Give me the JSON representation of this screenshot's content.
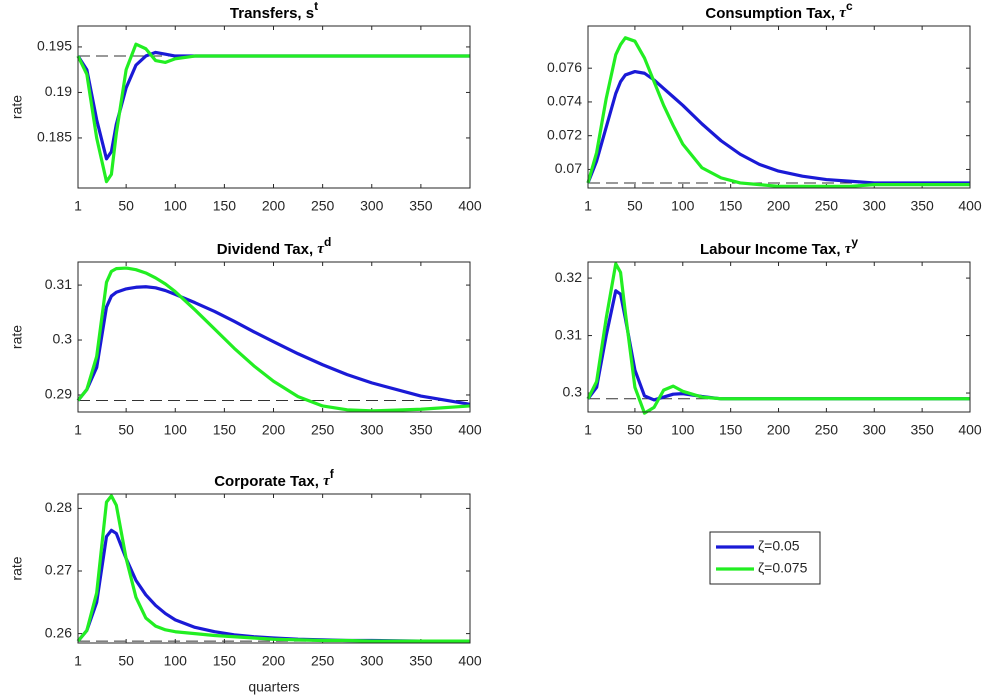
{
  "chart_data": [
    {
      "type": "line",
      "title": "Transfers, s",
      "title_sup": "t",
      "ylabel": "rate",
      "x": [
        1,
        10,
        20,
        30,
        35,
        40,
        50,
        60,
        70,
        80,
        90,
        100,
        120,
        140,
        160,
        180,
        200,
        225,
        250,
        275,
        300,
        350,
        400
      ],
      "xlim": [
        1,
        400
      ],
      "xticks": [
        1,
        50,
        100,
        150,
        200,
        250,
        300,
        350,
        400
      ],
      "ylim": [
        0.1795,
        0.1973
      ],
      "yticks": [
        0.185,
        0.19,
        0.195
      ],
      "steady_state": 0.194,
      "series": [
        {
          "name": "ζ=0.05",
          "color": "#1a1ad6",
          "values": [
            0.194,
            0.1925,
            0.187,
            0.1827,
            0.1835,
            0.1865,
            0.1905,
            0.193,
            0.194,
            0.1944,
            0.1942,
            0.194,
            0.194,
            0.194,
            0.194,
            0.194,
            0.194,
            0.194,
            0.194,
            0.194,
            0.194,
            0.194,
            0.194
          ]
        },
        {
          "name": "ζ=0.075",
          "color": "#22ee22",
          "values": [
            0.194,
            0.192,
            0.185,
            0.1802,
            0.181,
            0.1855,
            0.1925,
            0.1953,
            0.1948,
            0.1935,
            0.1933,
            0.1937,
            0.194,
            0.194,
            0.194,
            0.194,
            0.194,
            0.194,
            0.194,
            0.194,
            0.194,
            0.194,
            0.194
          ]
        }
      ]
    },
    {
      "type": "line",
      "title": "Consumption Tax, τ",
      "title_sup": "c",
      "x": [
        1,
        10,
        20,
        30,
        35,
        40,
        50,
        60,
        70,
        80,
        90,
        100,
        120,
        140,
        160,
        180,
        200,
        225,
        250,
        275,
        300,
        350,
        400
      ],
      "xlim": [
        1,
        400
      ],
      "xticks": [
        1,
        50,
        100,
        150,
        200,
        250,
        300,
        350,
        400
      ],
      "ylim": [
        0.0689,
        0.0785
      ],
      "yticks": [
        0.07,
        0.072,
        0.074,
        0.076
      ],
      "steady_state": 0.0692,
      "series": [
        {
          "name": "ζ=0.05",
          "color": "#1a1ad6",
          "values": [
            0.0692,
            0.0705,
            0.0725,
            0.0745,
            0.0752,
            0.0756,
            0.0758,
            0.0757,
            0.0753,
            0.0748,
            0.0743,
            0.0738,
            0.0727,
            0.0717,
            0.0709,
            0.0703,
            0.0699,
            0.0696,
            0.0694,
            0.0693,
            0.0692,
            0.0692,
            0.0692
          ]
        },
        {
          "name": "ζ=0.075",
          "color": "#22ee22",
          "values": [
            0.0692,
            0.071,
            0.0742,
            0.0768,
            0.0774,
            0.0778,
            0.0776,
            0.0766,
            0.0752,
            0.0738,
            0.0726,
            0.0715,
            0.0701,
            0.0695,
            0.0692,
            0.0691,
            0.069,
            0.069,
            0.069,
            0.069,
            0.0691,
            0.0691,
            0.0691
          ]
        }
      ]
    },
    {
      "type": "line",
      "title": "Dividend Tax, τ",
      "title_sup": "d",
      "ylabel": "rate",
      "x": [
        1,
        10,
        20,
        30,
        35,
        40,
        50,
        60,
        70,
        80,
        90,
        100,
        120,
        140,
        160,
        180,
        200,
        225,
        250,
        275,
        300,
        350,
        400
      ],
      "xlim": [
        1,
        400
      ],
      "xticks": [
        1,
        50,
        100,
        150,
        200,
        250,
        300,
        350,
        400
      ],
      "ylim": [
        0.2869,
        0.3142
      ],
      "yticks": [
        0.29,
        0.3,
        0.31
      ],
      "steady_state": 0.289,
      "series": [
        {
          "name": "ζ=0.05",
          "color": "#1a1ad6",
          "values": [
            0.289,
            0.291,
            0.295,
            0.306,
            0.308,
            0.3087,
            0.3093,
            0.3096,
            0.3097,
            0.3095,
            0.309,
            0.3083,
            0.3068,
            0.3052,
            0.3034,
            0.3015,
            0.2997,
            0.2975,
            0.2955,
            0.2937,
            0.2922,
            0.2898,
            0.2883
          ]
        },
        {
          "name": "ζ=0.075",
          "color": "#22ee22",
          "values": [
            0.289,
            0.291,
            0.297,
            0.3105,
            0.3125,
            0.313,
            0.3131,
            0.3128,
            0.3122,
            0.3113,
            0.3102,
            0.3088,
            0.3055,
            0.302,
            0.2985,
            0.2953,
            0.2925,
            0.2897,
            0.288,
            0.2873,
            0.2871,
            0.2874,
            0.288
          ]
        }
      ]
    },
    {
      "type": "line",
      "title": "Labour Income Tax, τ",
      "title_sup": "y",
      "x": [
        1,
        10,
        20,
        30,
        35,
        40,
        50,
        60,
        70,
        80,
        90,
        100,
        120,
        140,
        160,
        180,
        200,
        225,
        250,
        275,
        300,
        350,
        400
      ],
      "xlim": [
        1,
        400
      ],
      "xticks": [
        1,
        50,
        100,
        150,
        200,
        250,
        300,
        350,
        400
      ],
      "ylim": [
        0.2967,
        0.3228
      ],
      "yticks": [
        0.3,
        0.31,
        0.32
      ],
      "steady_state": 0.299,
      "series": [
        {
          "name": "ζ=0.05",
          "color": "#1a1ad6",
          "values": [
            0.299,
            0.301,
            0.31,
            0.3178,
            0.3172,
            0.313,
            0.304,
            0.2995,
            0.2988,
            0.2993,
            0.2998,
            0.2999,
            0.2994,
            0.299,
            0.299,
            0.299,
            0.299,
            0.299,
            0.299,
            0.299,
            0.299,
            0.299,
            0.299
          ]
        },
        {
          "name": "ζ=0.075",
          "color": "#22ee22",
          "values": [
            0.299,
            0.302,
            0.313,
            0.3225,
            0.321,
            0.314,
            0.301,
            0.2965,
            0.2975,
            0.3005,
            0.3012,
            0.3003,
            0.2993,
            0.299,
            0.299,
            0.299,
            0.299,
            0.299,
            0.299,
            0.299,
            0.299,
            0.299,
            0.299
          ]
        }
      ]
    },
    {
      "type": "line",
      "title": "Corporate Tax, τ",
      "title_sup": "f",
      "ylabel": "rate",
      "xlabel": "quarters",
      "x": [
        1,
        10,
        20,
        30,
        35,
        40,
        50,
        60,
        70,
        80,
        90,
        100,
        120,
        140,
        160,
        180,
        200,
        225,
        250,
        275,
        300,
        350,
        400
      ],
      "xlim": [
        1,
        400
      ],
      "xticks": [
        1,
        50,
        100,
        150,
        200,
        250,
        300,
        350,
        400
      ],
      "ylim": [
        0.2585,
        0.2823
      ],
      "yticks": [
        0.26,
        0.27,
        0.28
      ],
      "steady_state": 0.2588,
      "series": [
        {
          "name": "ζ=0.05",
          "color": "#1a1ad6",
          "values": [
            0.2588,
            0.2605,
            0.265,
            0.2755,
            0.2765,
            0.276,
            0.272,
            0.2685,
            0.2662,
            0.2645,
            0.2632,
            0.2622,
            0.261,
            0.2603,
            0.2598,
            0.2595,
            0.2593,
            0.2591,
            0.259,
            0.2589,
            0.2589,
            0.2588,
            0.2588
          ]
        },
        {
          "name": "ζ=0.075",
          "color": "#22ee22",
          "values": [
            0.2588,
            0.2605,
            0.2665,
            0.281,
            0.282,
            0.2805,
            0.272,
            0.2658,
            0.2625,
            0.2612,
            0.2606,
            0.2603,
            0.26,
            0.2597,
            0.2595,
            0.2593,
            0.2591,
            0.259,
            0.2589,
            0.2589,
            0.2588,
            0.2588,
            0.2588
          ]
        }
      ]
    }
  ]
}
